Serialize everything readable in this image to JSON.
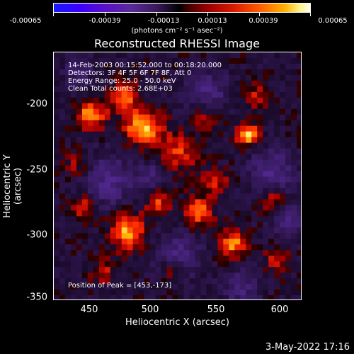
{
  "colorbar": {
    "tick_labels": [
      "-0.00065",
      "-0.00039",
      "-0.00013",
      "0.00013",
      "0.00039",
      "0.00065"
    ],
    "units": "(photons cm⁻² s⁻¹ asec⁻²)"
  },
  "title": "Reconstructed RHESSI Image",
  "annotations": {
    "line1": "14-Feb-2003 00:15:52.000 to 00:18:20.000",
    "line2": "Detectors: 3F 4F 5F 6F 7F 8F, Att 0",
    "line3": "Energy Range: 25.0 - 50.0 keV",
    "line4": "Clean     Total counts: 2.68E+03",
    "peak": "Position of Peak = [453,-173]"
  },
  "axes": {
    "xlabel": "Heliocentric X (arcsec)",
    "ylabel": "Heliocentric Y (arcsec)",
    "xticks": [
      "450",
      "500",
      "550",
      "600"
    ],
    "yticks": [
      "-200",
      "-250",
      "-300",
      "-350"
    ],
    "xlim": [
      422,
      615
    ],
    "ylim": [
      -352,
      -160
    ]
  },
  "timestamp": "3-May-2022 17:16",
  "colors": {
    "accent_hot": "#ffd200",
    "background": "#000000",
    "negative": "#5a2a9a"
  }
}
